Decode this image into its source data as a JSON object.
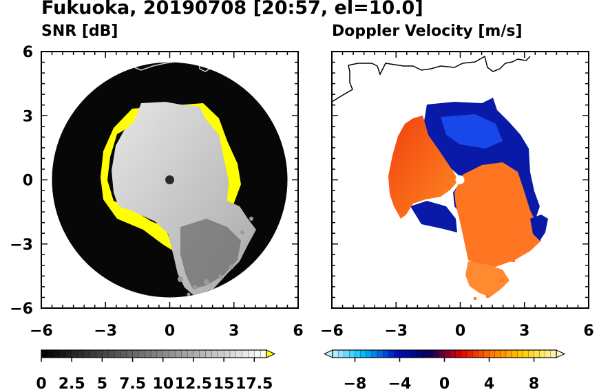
{
  "title": "Fukuoka, 20190708 [20:57, el=10.0]",
  "chart_data": [
    {
      "type": "heatmap",
      "title": "SNR [dB]",
      "xlim": [
        -6,
        6
      ],
      "ylim": [
        -6,
        6
      ],
      "xticks": [
        "−6",
        "−3",
        "0",
        "3",
        "6"
      ],
      "yticks": [
        "6",
        "3",
        "0",
        "−3",
        "−6"
      ],
      "radar_range": 5.5,
      "colorbar": {
        "min": 0,
        "max": 18.5,
        "tick_labels": [
          "0",
          "2.5",
          "5",
          "7.5",
          "10",
          "12.5",
          "15",
          "17.5"
        ],
        "tick_values": [
          0,
          2.5,
          5,
          7.5,
          10,
          12.5,
          15,
          17.5
        ],
        "colors": [
          "#000000",
          "#ffffff"
        ],
        "over_color": "#ffff00"
      }
    },
    {
      "type": "heatmap",
      "title": "Doppler Velocity [m/s]",
      "xlim": [
        -6,
        6
      ],
      "ylim": [
        -6,
        6
      ],
      "xticks": [
        "−6",
        "−3",
        "0",
        "3",
        "6"
      ],
      "yticks": [],
      "colorbar": {
        "min": -10,
        "max": 10,
        "tick_labels": [
          "−8",
          "−4",
          "0",
          "4",
          "8"
        ],
        "tick_values": [
          -8,
          -4,
          0,
          4,
          8
        ],
        "colors": [
          "#bff3ff",
          "#00b8ff",
          "#0010c0",
          "#000060",
          "#e00000",
          "#ff7a00",
          "#ffd000",
          "#fff8c0"
        ]
      }
    }
  ]
}
